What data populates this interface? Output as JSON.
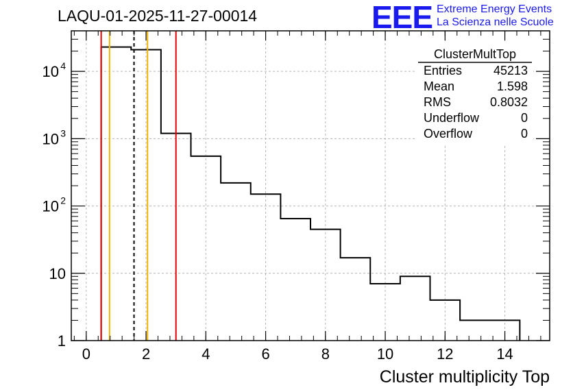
{
  "title": "LAQU-01-2025-11-27-00014",
  "logo": {
    "mark": "EEE",
    "line1": "Extreme Energy Events",
    "line2": "La Scienza nelle Scuole"
  },
  "colors": {
    "logo": "#1a1aee",
    "red": "#e00000",
    "orange": "#f0b400",
    "grid": "#b4b4b4"
  },
  "stats": {
    "name": "ClusterMultTop",
    "rows": [
      {
        "label": "Entries",
        "value": "45213"
      },
      {
        "label": "Mean",
        "value": "1.598"
      },
      {
        "label": "RMS",
        "value": "0.8032"
      },
      {
        "label": "Underflow",
        "value": "0"
      },
      {
        "label": "Overflow",
        "value": "0"
      }
    ]
  },
  "chart_data": {
    "type": "histogram",
    "xlabel": "Cluster multiplicity Top",
    "ylabel": "",
    "xlim": [
      -0.5,
      15.5
    ],
    "ylim": [
      1,
      40000
    ],
    "yscale": "log",
    "grid": true,
    "xticks": [
      "0",
      "2",
      "4",
      "6",
      "8",
      "10",
      "12",
      "14"
    ],
    "yticks": [
      {
        "base": "10",
        "exp": "4",
        "value": 10000
      },
      {
        "base": "10",
        "exp": "3",
        "value": 1000
      },
      {
        "base": "10",
        "exp": "2",
        "value": 100
      },
      {
        "base": "10",
        "exp": "",
        "value": 10
      },
      {
        "base": "1",
        "exp": "",
        "value": 1
      }
    ],
    "bin_edges": [
      0.5,
      1.5,
      2.5,
      3.5,
      4.5,
      5.5,
      6.5,
      7.5,
      8.5,
      9.5,
      10.5,
      11.5,
      12.5,
      13.5,
      14.5
    ],
    "counts": [
      23000,
      21000,
      1200,
      550,
      220,
      150,
      65,
      45,
      17,
      7,
      9,
      4,
      2,
      2
    ],
    "vertical_lines": [
      {
        "x": 0.5,
        "color": "red",
        "style": "solid"
      },
      {
        "x": 0.78,
        "color": "orange",
        "style": "solid"
      },
      {
        "x": 1.598,
        "color": "black",
        "style": "dashed"
      },
      {
        "x": 2.05,
        "color": "orange",
        "style": "solid"
      },
      {
        "x": 3.0,
        "color": "red",
        "style": "solid"
      }
    ]
  }
}
